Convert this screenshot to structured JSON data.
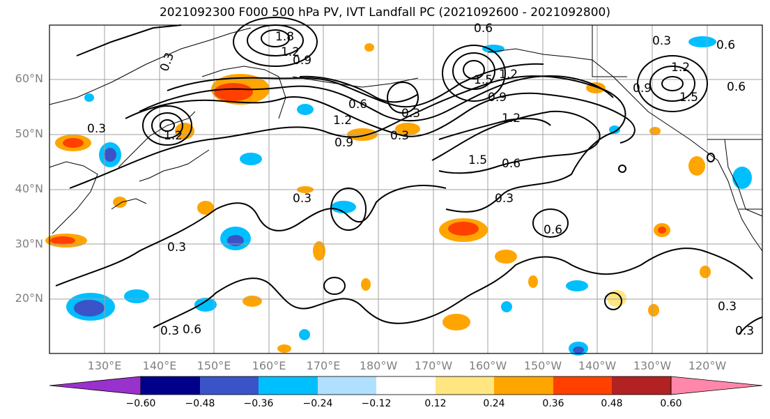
{
  "title": "2021092300 F000 500 hPa PV, IVT Landfall PC (2021092600 - 2021092800)",
  "lat_labels": [
    "60°N",
    "50°N",
    "40°N",
    "30°N",
    "20°N"
  ],
  "lon_labels": [
    "130°E",
    "140°E",
    "150°E",
    "160°E",
    "170°E",
    "180°W",
    "170°W",
    "160°W",
    "150°W",
    "140°W",
    "130°W",
    "120°W"
  ],
  "contour_labels": [
    "0.3",
    "0.6",
    "0.9",
    "1.2",
    "1.5",
    "1.8"
  ],
  "colorbar": {
    "ticks": [
      "−0.60",
      "−0.48",
      "−0.36",
      "−0.24",
      "−0.12",
      "0.12",
      "0.24",
      "0.36",
      "0.48",
      "0.60"
    ],
    "colors": [
      "#9932cc",
      "#00008b",
      "#3a54c8",
      "#00bfff",
      "#b0e0ff",
      "#ffffff",
      "#ffe680",
      "#ffa500",
      "#ff4000",
      "#b22222",
      "#ff88aa"
    ]
  }
}
